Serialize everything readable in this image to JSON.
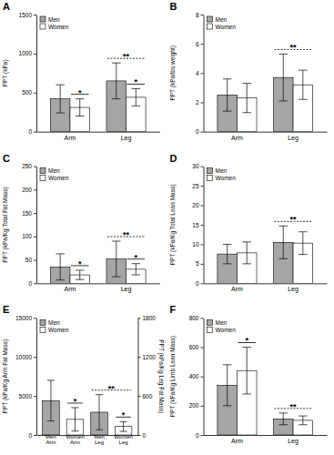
{
  "chart_data": [
    {
      "type": "bar",
      "title": "A",
      "categories": [
        "Arm",
        "Leg"
      ],
      "ylabel": "PPT (kPa)",
      "ylim": [
        0,
        1500
      ],
      "yticks": [
        0,
        500,
        1000,
        1500
      ],
      "grid": false,
      "legend": "upper left",
      "series": [
        {
          "name": "Men",
          "color": "#a6a6a6",
          "values": [
            420,
            650
          ],
          "errors": [
            180,
            230
          ]
        },
        {
          "name": "Women",
          "color": "#ffffff",
          "values": [
            310,
            440
          ],
          "errors": [
            110,
            110
          ]
        }
      ],
      "annotations": [
        {
          "text": "*",
          "categories": [
            "Arm"
          ],
          "series": "Women",
          "line_style": "solid"
        },
        {
          "text": "**",
          "categories": [
            "Leg"
          ],
          "line_style": "dashed"
        },
        {
          "text": "*",
          "categories": [
            "Leg"
          ],
          "series": "Women",
          "line_style": "solid"
        }
      ]
    },
    {
      "type": "bar",
      "title": "B",
      "categories": [
        "Arm",
        "Leg"
      ],
      "ylabel": "PPT (kPa/lbs weight)",
      "ylim": [
        0,
        8
      ],
      "yticks": [
        0,
        2,
        4,
        6,
        8
      ],
      "grid": false,
      "legend": "upper left",
      "series": [
        {
          "name": "Men",
          "color": "#a6a6a6",
          "values": [
            2.5,
            3.7
          ],
          "errors": [
            1.1,
            1.6
          ]
        },
        {
          "name": "Women",
          "color": "#ffffff",
          "values": [
            2.3,
            3.2
          ],
          "errors": [
            1.0,
            1.0
          ]
        }
      ],
      "annotations": [
        {
          "text": "**",
          "categories": [
            "Leg"
          ],
          "line_style": "dashed"
        }
      ]
    },
    {
      "type": "bar",
      "title": "C",
      "categories": [
        "Arm",
        "Leg"
      ],
      "ylabel": "PPT (kPa/Kg Total Fat Mass)",
      "ylim": [
        0,
        250
      ],
      "yticks": [
        0,
        50,
        100,
        150,
        200,
        250
      ],
      "grid": false,
      "legend": "upper left",
      "series": [
        {
          "name": "Men",
          "color": "#a6a6a6",
          "values": [
            35,
            52
          ],
          "errors": [
            28,
            38
          ]
        },
        {
          "name": "Women",
          "color": "#ffffff",
          "values": [
            18,
            30
          ],
          "errors": [
            10,
            12
          ]
        }
      ],
      "annotations": [
        {
          "text": "*",
          "categories": [
            "Arm"
          ],
          "series": "Women",
          "line_style": "solid"
        },
        {
          "text": "**",
          "categories": [
            "Leg"
          ],
          "line_style": "dashed"
        },
        {
          "text": "*",
          "categories": [
            "Leg"
          ],
          "series": "Women",
          "line_style": "solid"
        }
      ]
    },
    {
      "type": "bar",
      "title": "D",
      "categories": [
        "Arm",
        "Leg"
      ],
      "ylabel": "PPT (kPa/Kg Total Lean Mass)",
      "ylim": [
        0,
        30
      ],
      "yticks": [
        0,
        5,
        10,
        15,
        20,
        25,
        30
      ],
      "grid": false,
      "legend": "upper left",
      "series": [
        {
          "name": "Men",
          "color": "#a6a6a6",
          "values": [
            7.5,
            10.5
          ],
          "errors": [
            2.5,
            4.2
          ]
        },
        {
          "name": "Women",
          "color": "#ffffff",
          "values": [
            7.8,
            10.3
          ],
          "errors": [
            2.8,
            2.9
          ]
        }
      ],
      "annotations": [
        {
          "text": "**",
          "categories": [
            "Leg"
          ],
          "line_style": "dashed"
        }
      ]
    },
    {
      "type": "bar",
      "title": "E",
      "categories": [
        "Men Arm",
        "Women Arm",
        "Men Leg",
        "Women Leg"
      ],
      "ylabel": "PPT (kPa/Kg Arm Fat Mass)",
      "y2label": "PPT (kPa/Kg Leg Fat Mass)",
      "ylim": [
        0,
        15000
      ],
      "yticks": [
        0,
        5000,
        10000,
        15000
      ],
      "y2lim": [
        0,
        1800
      ],
      "y2ticks": [
        0,
        600,
        1200,
        1800
      ],
      "grid": false,
      "legend": "upper left",
      "series": [
        {
          "name": "Men",
          "color": "#a6a6a6",
          "values": [
            4400,
            null,
            null,
            null
          ],
          "errors": [
            2600,
            null,
            null,
            null
          ]
        },
        {
          "name": "Women",
          "color": "#ffffff",
          "values": [
            null,
            2000,
            null,
            null
          ],
          "errors": [
            null,
            1500,
            null,
            null
          ]
        },
        {
          "name": "Men",
          "color": "#a6a6a6",
          "axis": "y2",
          "values": [
            null,
            null,
            350,
            null
          ],
          "errors": [
            null,
            null,
            270,
            null
          ]
        },
        {
          "name": "Women",
          "color": "#ffffff",
          "axis": "y2",
          "values": [
            null,
            null,
            null,
            130
          ],
          "errors": [
            null,
            null,
            null,
            75
          ]
        }
      ],
      "annotations": [
        {
          "text": "*",
          "categories": [
            "Women Arm"
          ],
          "line_style": "solid"
        },
        {
          "text": "**",
          "categories": [
            "Men Leg",
            "Women Leg"
          ],
          "line_style": "dashed"
        },
        {
          "text": "*",
          "categories": [
            "Women Leg"
          ],
          "line_style": "solid"
        }
      ]
    },
    {
      "type": "bar",
      "title": "F",
      "categories": [
        "Arm",
        "Leg"
      ],
      "ylabel": "PPT (kPa/Kg Limb Lean Mass)",
      "ylim": [
        0,
        800
      ],
      "yticks": [
        0,
        200,
        400,
        600,
        800
      ],
      "grid": false,
      "legend": "upper left",
      "series": [
        {
          "name": "Men",
          "color": "#a6a6a6",
          "values": [
            340,
            110
          ],
          "errors": [
            140,
            40
          ]
        },
        {
          "name": "Women",
          "color": "#ffffff",
          "values": [
            440,
            100
          ],
          "errors": [
            160,
            30
          ]
        }
      ],
      "annotations": [
        {
          "text": "*",
          "categories": [
            "Arm"
          ],
          "series": "Women",
          "line_style": "solid"
        },
        {
          "text": "**",
          "categories": [
            "Leg"
          ],
          "line_style": "dashed"
        }
      ]
    }
  ]
}
